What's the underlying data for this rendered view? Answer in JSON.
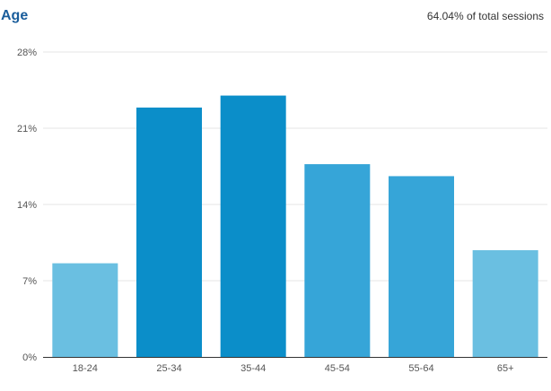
{
  "header": {
    "title": "Age",
    "subtitle": "64.04% of total sessions"
  },
  "colors": {
    "title": "#1a5d9b",
    "bar_light": "#6abfe1",
    "bar_dark": "#0b8ec9",
    "bar_mid": "#36a5d8",
    "gridline": "#e6e6e6",
    "axis": "#333333"
  },
  "chart_data": {
    "type": "bar",
    "title": "Age",
    "categories": [
      "18-24",
      "25-34",
      "35-44",
      "45-54",
      "55-64",
      "65+"
    ],
    "values": [
      8.6,
      22.9,
      24.0,
      17.7,
      16.6,
      9.8
    ],
    "unit": "%",
    "ylim": [
      0,
      28
    ],
    "yticks": [
      0,
      7,
      14,
      21,
      28
    ],
    "ytick_labels": [
      "0%",
      "7%",
      "14%",
      "21%",
      "28%"
    ],
    "bar_colors": [
      "#6abfe1",
      "#0b8ec9",
      "#0b8ec9",
      "#36a5d8",
      "#36a5d8",
      "#6abfe1"
    ],
    "grid": true,
    "legend": "none"
  }
}
